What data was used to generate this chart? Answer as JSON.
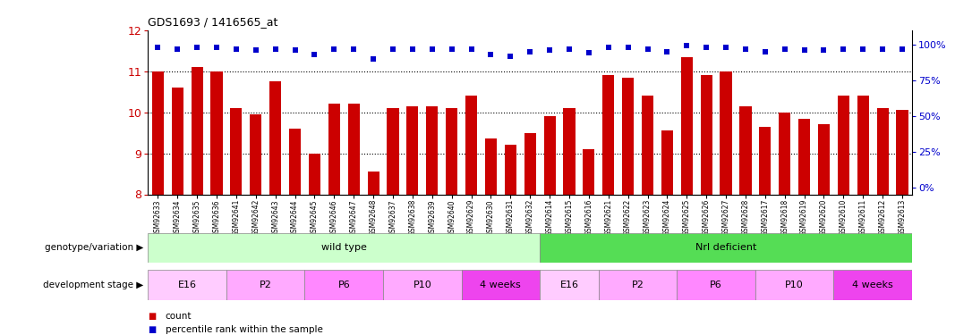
{
  "title": "GDS1693 / 1416565_at",
  "samples": [
    "GSM92633",
    "GSM92634",
    "GSM92635",
    "GSM92636",
    "GSM92641",
    "GSM92642",
    "GSM92643",
    "GSM92644",
    "GSM92645",
    "GSM92646",
    "GSM92647",
    "GSM92648",
    "GSM92637",
    "GSM92638",
    "GSM92639",
    "GSM92640",
    "GSM92629",
    "GSM92630",
    "GSM92631",
    "GSM92632",
    "GSM92614",
    "GSM92615",
    "GSM92616",
    "GSM92621",
    "GSM92622",
    "GSM92623",
    "GSM92624",
    "GSM92625",
    "GSM92626",
    "GSM92627",
    "GSM92628",
    "GSM92617",
    "GSM92618",
    "GSM92619",
    "GSM92620",
    "GSM92610",
    "GSM92611",
    "GSM92612",
    "GSM92613"
  ],
  "bar_values": [
    11.0,
    10.6,
    11.1,
    11.0,
    10.1,
    9.95,
    10.75,
    9.6,
    9.0,
    10.2,
    10.2,
    8.55,
    10.1,
    10.15,
    10.15,
    10.1,
    10.4,
    9.35,
    9.2,
    9.5,
    9.9,
    10.1,
    9.1,
    10.9,
    10.85,
    10.4,
    9.55,
    11.35,
    10.9,
    11.0,
    10.15,
    9.65,
    10.0,
    9.85,
    9.7,
    10.4,
    10.4,
    10.1,
    10.05
  ],
  "percentile_values": [
    98,
    97,
    98,
    98,
    97,
    96,
    97,
    96,
    93,
    97,
    97,
    90,
    97,
    97,
    97,
    97,
    97,
    93,
    92,
    95,
    96,
    97,
    94,
    98,
    98,
    97,
    95,
    99,
    98,
    98,
    97,
    95,
    97,
    96,
    96,
    97,
    97,
    97,
    97
  ],
  "bar_color": "#cc0000",
  "percentile_color": "#0000cc",
  "ylim": [
    8,
    12
  ],
  "yticks": [
    8,
    9,
    10,
    11,
    12
  ],
  "right_yticks": [
    0,
    25,
    50,
    75,
    100
  ],
  "right_ytick_labels": [
    "0%",
    "25%",
    "50%",
    "75%",
    "100%"
  ],
  "genotype_groups": [
    {
      "label": "wild type",
      "start": 0,
      "end": 20,
      "color": "#ccffcc"
    },
    {
      "label": "Nrl deficient",
      "start": 20,
      "end": 39,
      "color": "#55dd55"
    }
  ],
  "stage_groups": [
    {
      "label": "E16",
      "start": 0,
      "end": 4,
      "color": "#ffccff"
    },
    {
      "label": "P2",
      "start": 4,
      "end": 8,
      "color": "#ffaaff"
    },
    {
      "label": "P6",
      "start": 8,
      "end": 12,
      "color": "#ff88ff"
    },
    {
      "label": "P10",
      "start": 12,
      "end": 16,
      "color": "#ffaaff"
    },
    {
      "label": "4 weeks",
      "start": 16,
      "end": 20,
      "color": "#ee44ee"
    },
    {
      "label": "E16",
      "start": 20,
      "end": 23,
      "color": "#ffccff"
    },
    {
      "label": "P2",
      "start": 23,
      "end": 27,
      "color": "#ffaaff"
    },
    {
      "label": "P6",
      "start": 27,
      "end": 31,
      "color": "#ff88ff"
    },
    {
      "label": "P10",
      "start": 31,
      "end": 35,
      "color": "#ffaaff"
    },
    {
      "label": "4 weeks",
      "start": 35,
      "end": 39,
      "color": "#ee44ee"
    }
  ],
  "label_genotype": "genotype/variation",
  "label_stage": "development stage",
  "legend_count": "count",
  "legend_percentile": "percentile rank within the sample",
  "bg_color": "#ffffff",
  "tick_label_color": "#cc0000",
  "right_tick_label_color": "#0000cc"
}
